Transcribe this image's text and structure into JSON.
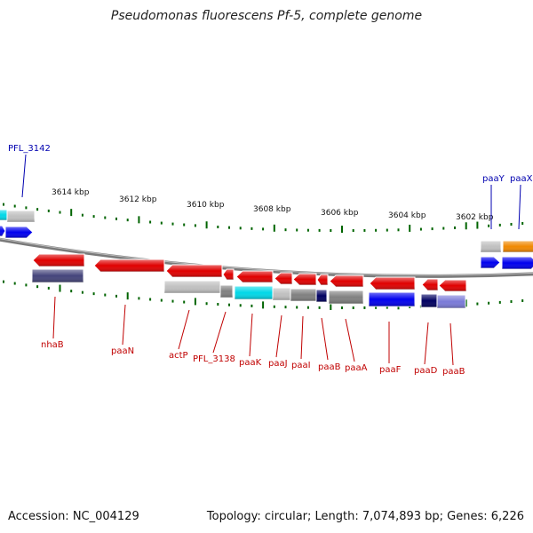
{
  "title": "Pseudomonas fluorescens Pf-5, complete genome",
  "footer": {
    "accession": "Accession: NC_004129",
    "summary": "Topology: circular; Length: 7,074,893 bp; Genes: 6,226"
  },
  "colors": {
    "red": "#e00000",
    "blue": "#0000ee",
    "navy": "#000060",
    "slate": "#44447a",
    "lavender": "#7a7ad8",
    "cyan": "#00d8e8",
    "gray": "#808080",
    "lightgray": "#c0c0c0",
    "orange": "#f08800",
    "tick": "#006400",
    "backbone": "#808080"
  },
  "scale_labels": [
    "3614 kbp",
    "3612 kbp",
    "3610 kbp",
    "3608 kbp",
    "3606 kbp",
    "3604 kbp",
    "3602 kbp"
  ],
  "gene_labels": [
    {
      "text": "PFL_3142",
      "color": "blue"
    },
    {
      "text": "paaY",
      "color": "blue"
    },
    {
      "text": "paaX",
      "color": "blue"
    },
    {
      "text": "nhaB",
      "color": "red"
    },
    {
      "text": "paaN",
      "color": "red"
    },
    {
      "text": "actP",
      "color": "red"
    },
    {
      "text": "PFL_3138",
      "color": "red"
    },
    {
      "text": "paaK",
      "color": "red"
    },
    {
      "text": "paaJ",
      "color": "red"
    },
    {
      "text": "paaI",
      "color": "red"
    },
    {
      "text": "paaB",
      "color": "red"
    },
    {
      "text": "paaA",
      "color": "red"
    },
    {
      "text": "paaF",
      "color": "red"
    },
    {
      "text": "paaD",
      "color": "red"
    },
    {
      "text": "paaB",
      "color": "red"
    }
  ]
}
